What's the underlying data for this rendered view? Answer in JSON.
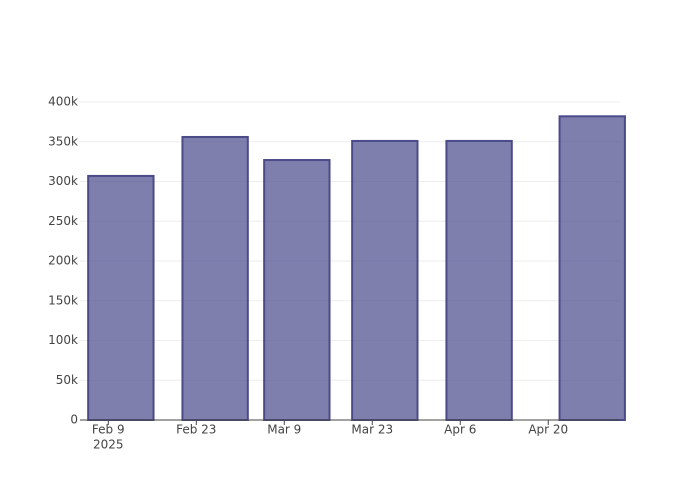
{
  "chart_data": {
    "type": "bar",
    "x": [
      "2025-02-11",
      "2025-02-26",
      "2025-03-11",
      "2025-03-25",
      "2025-04-09",
      "2025-04-27"
    ],
    "values": [
      307000,
      356000,
      327000,
      351000,
      351000,
      382000
    ],
    "color": "rgba(72,72,140,0.7)",
    "edge_color": "#4b4b8a",
    "xlim": [
      "2025-02-04T12:00",
      "2025-05-01T10:00"
    ],
    "xticks": [
      {
        "value": "2025-02-09",
        "label": "Feb 9"
      },
      {
        "value": "2025-02-23",
        "label": "Feb 23"
      },
      {
        "value": "2025-03-09",
        "label": "Mar 9"
      },
      {
        "value": "2025-03-23",
        "label": "Mar 23"
      },
      {
        "value": "2025-04-06",
        "label": "Apr 6"
      },
      {
        "value": "2025-04-20",
        "label": "Apr 20"
      }
    ],
    "x_year_label": "2025",
    "ylim": [
      0,
      400000
    ],
    "yticks": [
      0,
      {
        "value": 50000,
        "label": "50k"
      },
      {
        "value": 100000,
        "label": "100k"
      },
      {
        "value": 150000,
        "label": "150k"
      },
      {
        "value": 200000,
        "label": "200k"
      },
      {
        "value": 250000,
        "label": "250k"
      },
      {
        "value": 300000,
        "label": "300k"
      },
      {
        "value": 350000,
        "label": "350k"
      },
      {
        "value": 400000,
        "label": "400k"
      }
    ],
    "grid": true
  }
}
